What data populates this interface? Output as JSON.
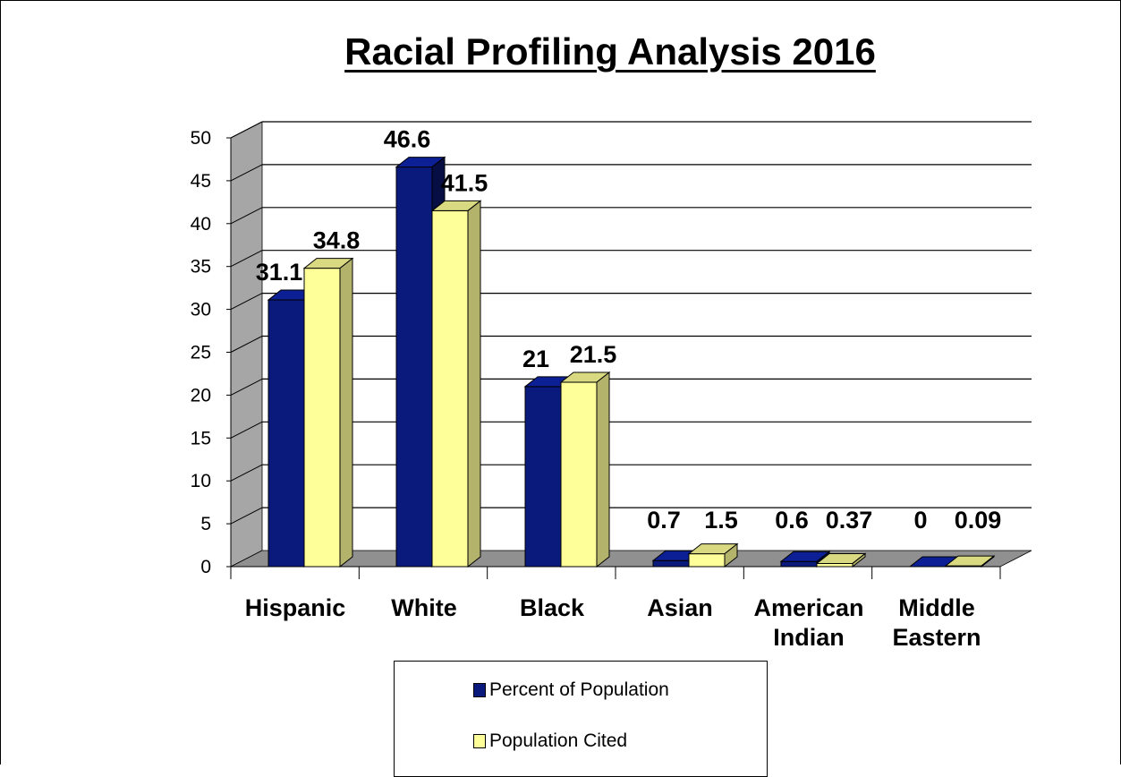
{
  "chart_data": {
    "type": "bar",
    "title": "Racial Profiling Analysis 2016",
    "categories": [
      [
        "Hispanic"
      ],
      [
        "White"
      ],
      [
        "Black"
      ],
      [
        "Asian"
      ],
      [
        "American",
        "Indian"
      ],
      [
        "Middle",
        "Eastern"
      ]
    ],
    "series": [
      {
        "name": "Percent of Population",
        "color": "#0a1a7c",
        "values": [
          31.1,
          46.6,
          21,
          0.7,
          0.6,
          0
        ],
        "labels": [
          "31.1",
          "46.6",
          "21",
          "0.7",
          "0.6",
          "0"
        ]
      },
      {
        "name": "Population Cited",
        "color": "#ffff99",
        "values": [
          34.8,
          41.5,
          21.5,
          1.5,
          0.37,
          0.09
        ],
        "labels": [
          "34.8",
          "41.5",
          "21.5",
          "1.5",
          "0.37",
          "0.09"
        ]
      }
    ],
    "ylim": [
      0,
      50
    ],
    "yticks": [
      "0",
      "5",
      "10",
      "15",
      "20",
      "25",
      "30",
      "35",
      "40",
      "45",
      "50"
    ],
    "grid": true,
    "legend_position": "bottom"
  }
}
